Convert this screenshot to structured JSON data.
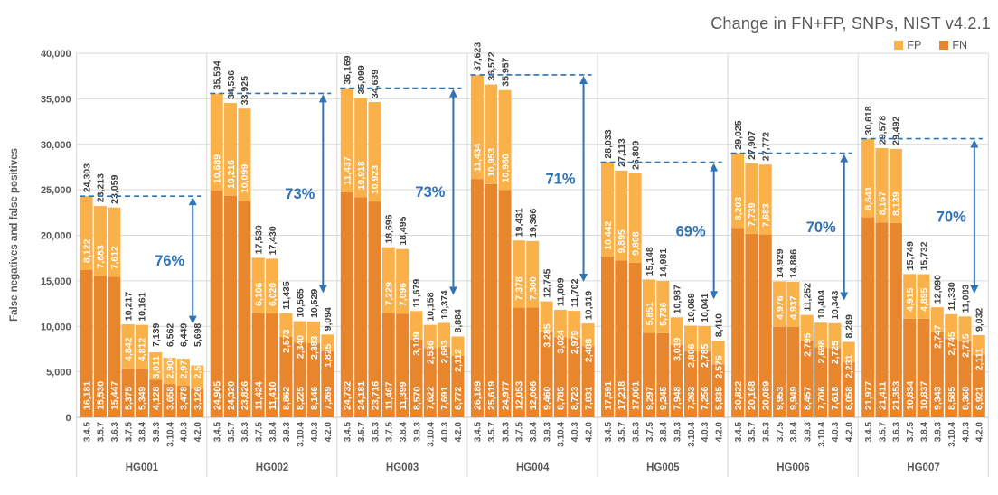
{
  "title": "Change in FN+FP, SNPs, NIST v4.2.1",
  "legend": [
    {
      "label": "FP",
      "color": "#FBB149"
    },
    {
      "label": "FN",
      "color": "#E8862D"
    }
  ],
  "colors": {
    "fp": "#FBB149",
    "fn": "#E8862D",
    "annotation_blue": "#2E74B5",
    "gridline": "#D9D9D9",
    "axis_line": "#BFBFBF",
    "label_dark": "#404040",
    "label_gray": "#595959",
    "inside_label": "#FFFFFF"
  },
  "chart_data": {
    "type": "bar",
    "stacked": true,
    "title": "Change in FN+FP, SNPs, NIST v4.2.1",
    "xlabel": "",
    "ylabel": "False negatives and false positives",
    "ylim": [
      0,
      40000
    ],
    "ytick_interval": 5000,
    "grid": true,
    "legend_position": "top-right",
    "legend_entries": [
      "FP",
      "FN"
    ],
    "stack_order_bottom_to_top": [
      "FN",
      "FP"
    ],
    "versions": [
      "3.4.5",
      "3.5.7",
      "3.6.3",
      "3.7.5",
      "3.8.4",
      "3.9.3",
      "3.10.4",
      "4.0.3",
      "4.2.0"
    ],
    "groups": [
      {
        "name": "HG001",
        "pct_label": "76%",
        "fn": [
          16181,
          15530,
          15447,
          5375,
          5349,
          4128,
          3658,
          3478,
          3126
        ],
        "fp": [
          8122,
          7683,
          7612,
          4842,
          4812,
          3011,
          2904,
          2971,
          2572
        ],
        "totals": [
          24303,
          23213,
          23059,
          10217,
          10161,
          7139,
          6562,
          6449,
          5698
        ]
      },
      {
        "name": "HG002",
        "pct_label": "73%",
        "fn": [
          24905,
          24320,
          23826,
          11424,
          11410,
          8862,
          8225,
          8146,
          7269
        ],
        "fp": [
          10689,
          10216,
          10099,
          6106,
          6020,
          2573,
          2340,
          2383,
          1825
        ],
        "totals": [
          35594,
          34536,
          33925,
          17530,
          17430,
          11435,
          10565,
          10529,
          9094
        ]
      },
      {
        "name": "HG003",
        "pct_label": "73%",
        "fn": [
          24732,
          24181,
          23716,
          11467,
          11399,
          8570,
          7622,
          7691,
          6772
        ],
        "fp": [
          11437,
          10918,
          10923,
          7229,
          7096,
          3109,
          2536,
          2683,
          2112
        ],
        "totals": [
          36169,
          35099,
          34639,
          18696,
          18495,
          11679,
          10158,
          10374,
          8884
        ]
      },
      {
        "name": "HG004",
        "pct_label": "71%",
        "fn": [
          26189,
          25619,
          24977,
          12053,
          12066,
          9460,
          8785,
          8723,
          7831
        ],
        "fp": [
          11434,
          10953,
          10980,
          7378,
          7300,
          3285,
          3024,
          2979,
          2488
        ],
        "totals": [
          37623,
          36572,
          35957,
          19431,
          19366,
          12745,
          11809,
          11702,
          10319
        ]
      },
      {
        "name": "HG005",
        "pct_label": "69%",
        "fn": [
          17591,
          17218,
          17001,
          9297,
          9245,
          7948,
          7263,
          7256,
          5835
        ],
        "fp": [
          10442,
          9895,
          9808,
          5851,
          5736,
          3039,
          2806,
          2785,
          2575
        ],
        "totals": [
          28033,
          27113,
          26809,
          15148,
          14981,
          10987,
          10069,
          10041,
          8410
        ]
      },
      {
        "name": "HG006",
        "pct_label": "70%",
        "fn": [
          20822,
          20168,
          20089,
          9953,
          9949,
          8457,
          7706,
          7618,
          6058
        ],
        "fp": [
          8203,
          7739,
          7683,
          4976,
          4937,
          2795,
          2698,
          2725,
          2231
        ],
        "totals": [
          29025,
          27907,
          27772,
          14929,
          14886,
          11252,
          10404,
          10343,
          8289
        ]
      },
      {
        "name": "HG007",
        "pct_label": "70%",
        "fn": [
          21977,
          21411,
          21353,
          10834,
          10837,
          9343,
          8585,
          8368,
          6921
        ],
        "fp": [
          8641,
          8167,
          8139,
          4915,
          4895,
          2747,
          2745,
          2715,
          2111
        ],
        "totals": [
          30618,
          29578,
          29492,
          15749,
          15732,
          12090,
          11330,
          11083,
          9032
        ]
      }
    ]
  }
}
